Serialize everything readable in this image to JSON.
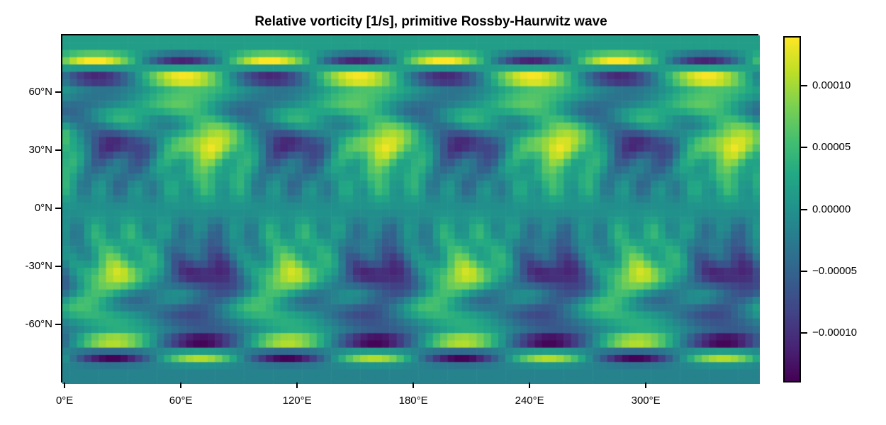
{
  "figure": {
    "background": "#ffffff"
  },
  "chart_data": {
    "type": "heatmap",
    "title": "Relative vorticity [1/s], primitive Rossby-Haurwitz wave",
    "xlabel": "",
    "ylabel": "",
    "x_axis": {
      "range": [
        -1.875,
        358.125
      ],
      "tick_values": [
        0,
        60,
        120,
        180,
        240,
        300
      ],
      "tick_labels": [
        "0°E",
        "60°E",
        "120°E",
        "180°E",
        "240°E",
        "300°E"
      ]
    },
    "y_axis": {
      "range": [
        -90,
        90
      ],
      "tick_values": [
        60,
        30,
        0,
        -30,
        -60
      ],
      "tick_labels": [
        "60°N",
        "30°N",
        "0°N",
        "-30°N",
        "-60°N"
      ]
    },
    "colorbar": {
      "vmin": -0.00014,
      "vmax": 0.00014,
      "tick_values": [
        0.0001,
        5e-05,
        0.0,
        -5e-05,
        -0.0001
      ],
      "tick_labels": [
        "0.00010",
        "0.00005",
        "0.00000",
        "−0.00005",
        "−0.00010"
      ]
    },
    "colormap": {
      "name": "viridis",
      "stops": [
        {
          "t": 0.0,
          "c": "#440154"
        },
        {
          "t": 0.1,
          "c": "#482475"
        },
        {
          "t": 0.2,
          "c": "#414487"
        },
        {
          "t": 0.3,
          "c": "#355f8d"
        },
        {
          "t": 0.4,
          "c": "#2a788e"
        },
        {
          "t": 0.5,
          "c": "#21918c"
        },
        {
          "t": 0.6,
          "c": "#22a884"
        },
        {
          "t": 0.7,
          "c": "#44bf70"
        },
        {
          "t": 0.8,
          "c": "#7ad151"
        },
        {
          "t": 0.9,
          "c": "#bddf26"
        },
        {
          "t": 1.0,
          "c": "#fde725"
        }
      ]
    },
    "grid": {
      "nlon": 96,
      "nlat": 48,
      "dlon": 3.75,
      "lon_start": 0.0,
      "lat_start": 88.125,
      "dlat": -3.75
    },
    "field_model": {
      "description": "wavenumber-4 Rossby-Haurwitz relative vorticity snapshot, antisymmetric about the equator",
      "planetary_amp": 1.57e-05,
      "modes": [
        {
          "type": "rh",
          "amp": 0.00015,
          "power": 4,
          "k": 4,
          "phase": 73
        },
        {
          "type": "band",
          "amp": 7.5e-05,
          "lat": 34,
          "sigma": 8,
          "k": 4,
          "phase": 73,
          "tilt": 0
        },
        {
          "type": "band",
          "amp": -7.5e-05,
          "lat": -34,
          "sigma": 8,
          "k": 4,
          "phase": 71,
          "tilt": 0
        },
        {
          "type": "band",
          "amp": 0.000135,
          "lat": 77.5,
          "sigma": 3.2,
          "k": 4,
          "phase": 15,
          "tilt": 0
        },
        {
          "type": "band",
          "amp": -0.000135,
          "lat": 68,
          "sigma": 4.2,
          "k": 4,
          "phase": 15,
          "tilt": 0
        },
        {
          "type": "band",
          "amp": 0.000135,
          "lat": -68,
          "sigma": 4.2,
          "k": 4,
          "phase": 24,
          "tilt": 0
        },
        {
          "type": "band",
          "amp": -0.000135,
          "lat": -76,
          "sigma": 3.2,
          "k": 4,
          "phase": 24,
          "tilt": 0
        },
        {
          "type": "band",
          "amp": 5e-05,
          "lat": 54,
          "sigma": 10,
          "k": 4,
          "phase": 50,
          "tilt": 2
        },
        {
          "type": "band",
          "amp": -5e-05,
          "lat": -54,
          "sigma": 10,
          "k": 4,
          "phase": 58,
          "tilt": -2
        },
        {
          "type": "band",
          "amp": 3.8e-05,
          "lat": 45,
          "sigma": 8,
          "k": 8,
          "phase": 30,
          "tilt": -1.2
        },
        {
          "type": "band",
          "amp": -3.8e-05,
          "lat": -45,
          "sigma": 8,
          "k": 8,
          "phase": 35,
          "tilt": 1.2
        },
        {
          "type": "band",
          "amp": 3e-05,
          "lat": 25,
          "sigma": 9,
          "k": 16,
          "phase": 5,
          "tilt": 0.5
        },
        {
          "type": "band",
          "amp": -3e-05,
          "lat": -25,
          "sigma": 9,
          "k": 16,
          "phase": 12,
          "tilt": -0.5
        },
        {
          "type": "band",
          "amp": 2.6e-05,
          "lat": 11,
          "sigma": 6,
          "k": 20,
          "phase": 0,
          "tilt": 0
        },
        {
          "type": "band",
          "amp": -2.6e-05,
          "lat": -11,
          "sigma": 6,
          "k": 20,
          "phase": 6,
          "tilt": 0
        }
      ]
    }
  }
}
